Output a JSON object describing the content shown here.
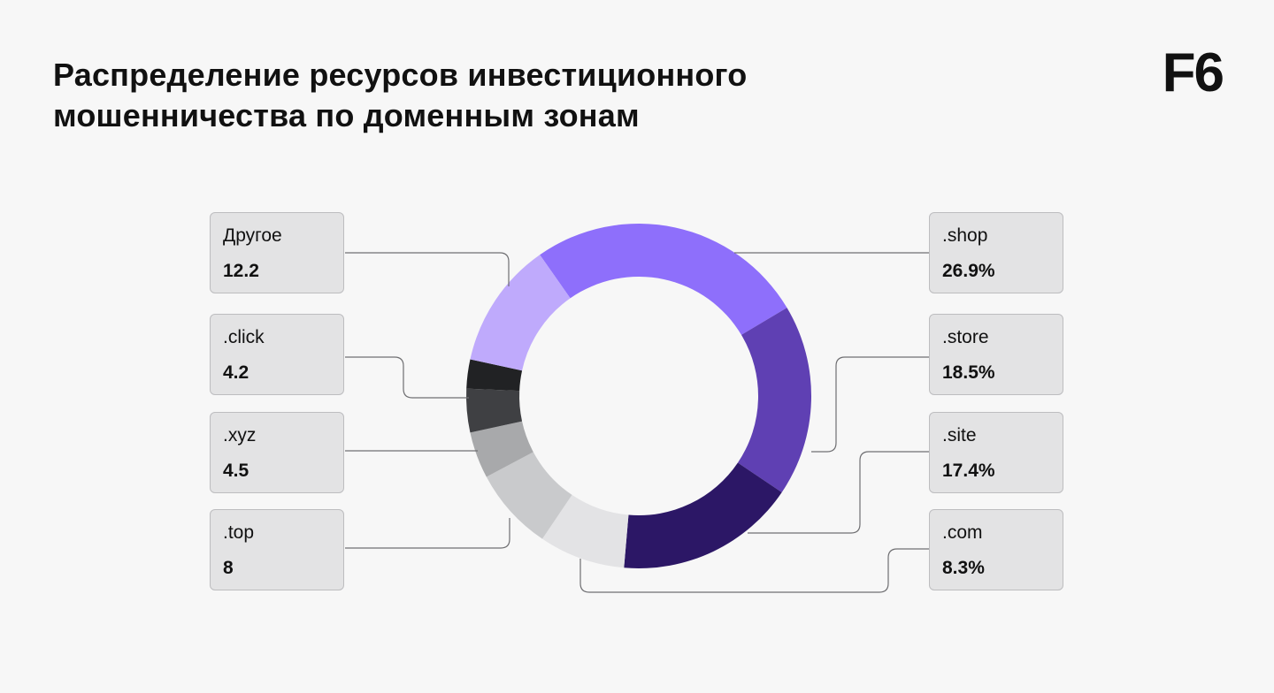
{
  "title_lines": [
    "Распределение ресурсов инвестиционного",
    "мошенничества по доменным зонам"
  ],
  "logo": "F6",
  "chart_data": {
    "type": "pie",
    "title": "Распределение ресурсов инвестиционного мошенничества по доменным зонам",
    "style": "donut",
    "slices": [
      {
        "label": ".shop",
        "value": 26.9,
        "display": "26.9%",
        "color": "#8e6ffb",
        "side": "right"
      },
      {
        "label": ".store",
        "value": 18.5,
        "display": "18.5%",
        "color": "#5f40b3",
        "side": "right"
      },
      {
        "label": ".site",
        "value": 17.4,
        "display": "17.4%",
        "color": "#2c1766",
        "side": "right"
      },
      {
        "label": ".com",
        "value": 8.3,
        "display": "8.3%",
        "color": "#e3e3e5",
        "side": "right"
      },
      {
        "label": ".top",
        "value": 8,
        "display": "8",
        "color": "#c9cacc",
        "side": "left"
      },
      {
        "label": ".xyz",
        "value": 4.5,
        "display": "4.5",
        "color": "#a8a9ab",
        "side": "left"
      },
      {
        "label": ".click",
        "value": 4.2,
        "display": "4.2",
        "color": "#3f4043",
        "side": "left"
      },
      {
        "label": "",
        "value": 2.8,
        "display": "",
        "color": "#212224",
        "side": "none"
      },
      {
        "label": "Другое",
        "value": 12.2,
        "display": "12.2",
        "color": "#bfaafc",
        "side": "left"
      }
    ]
  }
}
